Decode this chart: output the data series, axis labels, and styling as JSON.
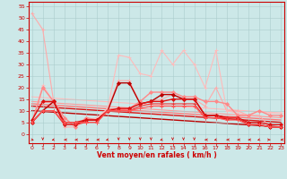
{
  "xlabel": "Vent moyen/en rafales ( km/h )",
  "bg_color": "#cce8e8",
  "grid_color": "#aacccc",
  "x_ticks": [
    0,
    1,
    2,
    3,
    4,
    5,
    6,
    7,
    8,
    9,
    10,
    11,
    12,
    13,
    14,
    15,
    16,
    17,
    18,
    19,
    20,
    21,
    22,
    23
  ],
  "y_ticks": [
    0,
    5,
    10,
    15,
    20,
    25,
    30,
    35,
    40,
    45,
    50,
    55
  ],
  "ylim": [
    -4,
    57
  ],
  "xlim": [
    -0.3,
    23.3
  ],
  "series": [
    {
      "x": [
        0,
        1,
        2,
        3,
        4,
        5,
        6,
        7,
        8,
        9,
        10,
        11,
        12,
        13,
        14,
        15,
        16,
        17,
        18,
        19,
        20,
        21,
        22,
        23
      ],
      "y": [
        52,
        45,
        14,
        3,
        3,
        6,
        6,
        11,
        23,
        23,
        13,
        14,
        15,
        17,
        15,
        15,
        12,
        20,
        10,
        10,
        8,
        8,
        3,
        3
      ],
      "color": "#ffaaaa",
      "lw": 0.8,
      "marker": "+",
      "ms": 3
    },
    {
      "x": [
        0,
        1,
        2,
        3,
        4,
        5,
        6,
        7,
        8,
        9,
        10,
        11,
        12,
        13,
        14,
        15,
        16,
        17,
        18,
        19,
        20,
        21,
        22,
        23
      ],
      "y": [
        5,
        21,
        14,
        7,
        3,
        6,
        7,
        11,
        34,
        33,
        26,
        25,
        36,
        30,
        36,
        30,
        20,
        36,
        10,
        9,
        8,
        10,
        9,
        9
      ],
      "color": "#ffbbbb",
      "lw": 0.8,
      "marker": "+",
      "ms": 3
    },
    {
      "x": [
        0,
        1,
        2,
        3,
        4,
        5,
        6,
        7,
        8,
        9,
        10,
        11,
        12,
        13,
        14,
        15,
        16,
        17,
        18,
        19,
        20,
        21,
        22,
        23
      ],
      "y": [
        5,
        20,
        14,
        7,
        3,
        7,
        6,
        10,
        11,
        11,
        14,
        18,
        18,
        18,
        16,
        16,
        14,
        14,
        13,
        8,
        8,
        10,
        8,
        8
      ],
      "color": "#ff8888",
      "lw": 1.0,
      "marker": "D",
      "ms": 2.0
    },
    {
      "x": [
        0,
        1,
        2,
        3,
        4,
        5,
        6,
        7,
        8,
        9,
        10,
        11,
        12,
        13,
        14,
        15,
        16,
        17,
        18,
        19,
        20,
        21,
        22,
        23
      ],
      "y": [
        5,
        10,
        14,
        4,
        4,
        6,
        6,
        10,
        22,
        22,
        13,
        14,
        17,
        17,
        15,
        15,
        8,
        8,
        7,
        7,
        4,
        4,
        3,
        3
      ],
      "color": "#bb0000",
      "lw": 1.0,
      "marker": "D",
      "ms": 2.0
    },
    {
      "x": [
        0,
        1,
        2,
        3,
        4,
        5,
        6,
        7,
        8,
        9,
        10,
        11,
        12,
        13,
        14,
        15,
        16,
        17,
        18,
        19,
        20,
        21,
        22,
        23
      ],
      "y": [
        6,
        14,
        14,
        5,
        5,
        6,
        6,
        10,
        11,
        11,
        13,
        14,
        14,
        15,
        15,
        15,
        8,
        8,
        7,
        7,
        5,
        5,
        4,
        4
      ],
      "color": "#dd1111",
      "lw": 1.0,
      "marker": "D",
      "ms": 2.0
    },
    {
      "x": [
        0,
        1,
        2,
        3,
        4,
        5,
        6,
        7,
        8,
        9,
        10,
        11,
        12,
        13,
        14,
        15,
        16,
        17,
        18,
        19,
        20,
        21,
        22,
        23
      ],
      "y": [
        5,
        10,
        10,
        4,
        4,
        5,
        5,
        10,
        10,
        10,
        12,
        13,
        13,
        13,
        13,
        13,
        7,
        7,
        7,
        7,
        4,
        4,
        3,
        3
      ],
      "color": "#ee3333",
      "lw": 0.8,
      "marker": "+",
      "ms": 3
    },
    {
      "x": [
        0,
        1,
        2,
        3,
        4,
        5,
        6,
        7,
        8,
        9,
        10,
        11,
        12,
        13,
        14,
        15,
        16,
        17,
        18,
        19,
        20,
        21,
        22,
        23
      ],
      "y": [
        5,
        10,
        10,
        5,
        5,
        5,
        5,
        10,
        10,
        10,
        11,
        12,
        12,
        12,
        12,
        12,
        7,
        7,
        6,
        6,
        4,
        4,
        3,
        3
      ],
      "color": "#ff5555",
      "lw": 0.8,
      "marker": "+",
      "ms": 3
    }
  ],
  "regression_lines": [
    {
      "x": [
        0,
        23
      ],
      "y": [
        16,
        9
      ],
      "color": "#ffbbbb",
      "lw": 0.8
    },
    {
      "x": [
        0,
        23
      ],
      "y": [
        14,
        7
      ],
      "color": "#ff9999",
      "lw": 0.8
    },
    {
      "x": [
        0,
        23
      ],
      "y": [
        13,
        6
      ],
      "color": "#ff7777",
      "lw": 1.0
    },
    {
      "x": [
        0,
        23
      ],
      "y": [
        12,
        5
      ],
      "color": "#dd1111",
      "lw": 1.0
    },
    {
      "x": [
        0,
        23
      ],
      "y": [
        10,
        3
      ],
      "color": "#bb0000",
      "lw": 1.0
    }
  ],
  "wind_directions": [
    45,
    0,
    315,
    270,
    270,
    270,
    270,
    315,
    0,
    0,
    0,
    0,
    315,
    0,
    0,
    0,
    270,
    315,
    270,
    270,
    270,
    315,
    90,
    270
  ]
}
